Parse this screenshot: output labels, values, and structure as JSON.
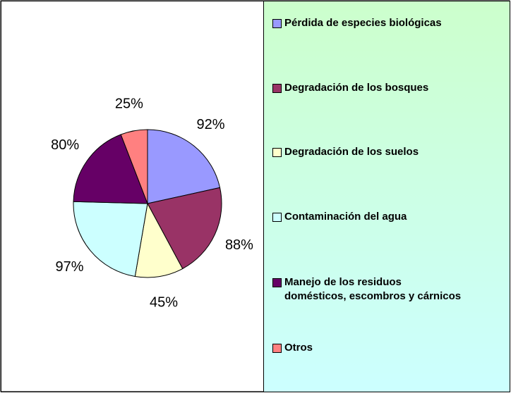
{
  "chart_data": {
    "type": "pie",
    "categories": [
      "Pérdida de especies biológicas",
      "Degradación de los bosques",
      "Degradación de los suelos",
      "Contaminación del agua",
      "Manejo de los residuos domésticos, escombros y cárnicos",
      "Otros"
    ],
    "values": [
      92,
      88,
      45,
      97,
      80,
      25
    ],
    "value_labels": [
      "92%",
      "88%",
      "45%",
      "97%",
      "80%",
      "25%"
    ],
    "colors": [
      "#9999ff",
      "#993366",
      "#ffffcc",
      "#ccffff",
      "#660066",
      "#ff8080"
    ],
    "legend": "right"
  }
}
